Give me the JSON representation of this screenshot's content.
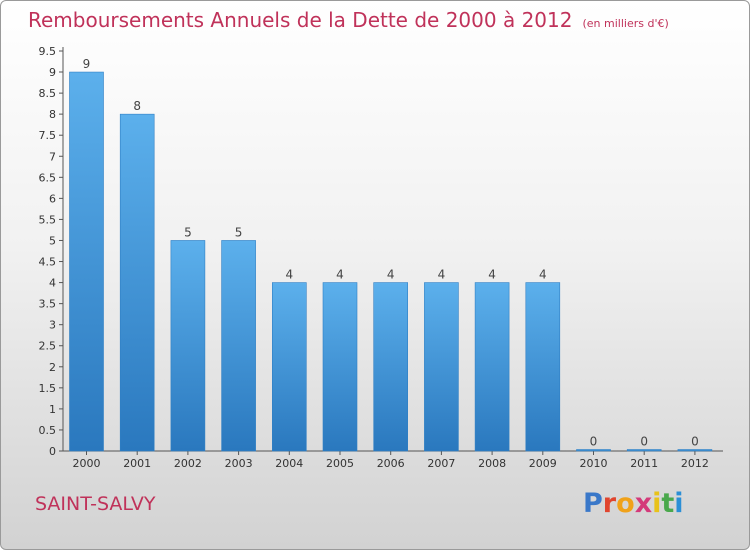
{
  "header": {
    "title": "Remboursements Annuels de la Dette de 2000 à 2012",
    "subtitle": "(en milliers d'€)"
  },
  "footer": {
    "place": "SAINT-SALVY",
    "logo": "Proxiti",
    "logo_colors": [
      "#3a78c9",
      "#e0452e",
      "#f0a21a",
      "#d43a7a",
      "#e8c21a",
      "#4aa84c",
      "#2b8fd6"
    ]
  },
  "chart_data": {
    "type": "bar",
    "title": "Remboursements Annuels de la Dette de 2000 à 2012",
    "subtitle": "(en milliers d'€)",
    "categories": [
      "2000",
      "2001",
      "2002",
      "2003",
      "2004",
      "2005",
      "2006",
      "2007",
      "2008",
      "2009",
      "2010",
      "2011",
      "2012"
    ],
    "values": [
      9,
      8,
      5,
      5,
      4,
      4,
      4,
      4,
      4,
      4,
      0,
      0,
      0
    ],
    "data_labels": [
      "9",
      "8",
      "5",
      "5",
      "4",
      "4",
      "4",
      "4",
      "4",
      "4",
      "0",
      "0",
      "0"
    ],
    "y_ticks": [
      "0",
      "0.5",
      "1",
      "1.5",
      "2",
      "2.5",
      "3",
      "3.5",
      "4",
      "4.5",
      "5",
      "5.5",
      "6",
      "6.5",
      "7",
      "7.5",
      "8",
      "8.5",
      "9",
      "9.5"
    ],
    "ylim": [
      0,
      9.5
    ],
    "bar_color": "#4a9fe0",
    "grid": false
  }
}
